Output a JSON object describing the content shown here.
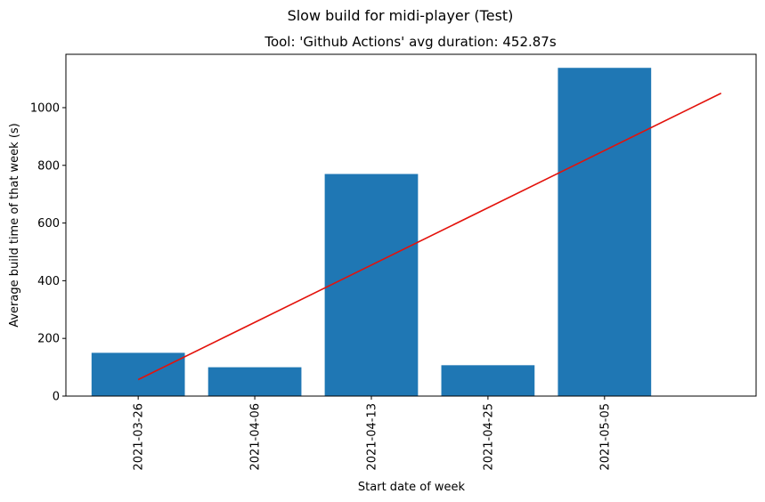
{
  "chart_data": {
    "type": "bar",
    "title": "Slow build for midi-player (Test)",
    "subtitle": "Tool: 'Github Actions' avg duration: 452.87s",
    "xlabel": "Start date of week",
    "ylabel": "Average build time of that week (s)",
    "categories": [
      "2021-03-26",
      "2021-04-06",
      "2021-04-13",
      "2021-04-25",
      "2021-05-05"
    ],
    "values": [
      150,
      100,
      770,
      107,
      1138
    ],
    "bar_color": "#1f77b4",
    "trend_line": {
      "color": "#e3120b",
      "start_value": 57,
      "end_value": 1050
    },
    "ylim": [
      0,
      1185
    ],
    "yticks": [
      0,
      200,
      400,
      600,
      800,
      1000
    ],
    "grid": false,
    "legend": "none"
  }
}
